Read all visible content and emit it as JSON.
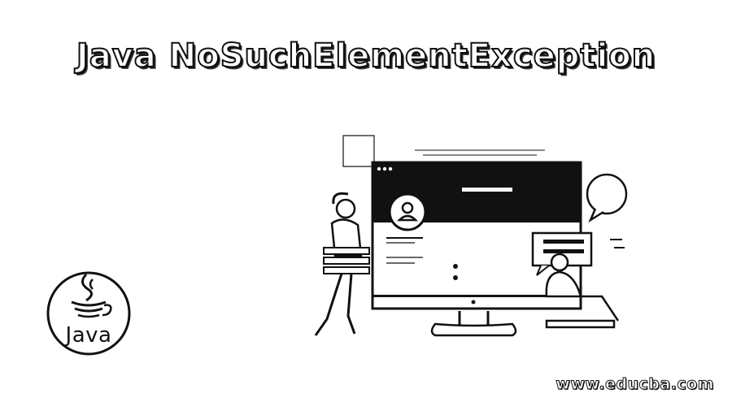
{
  "banner": {
    "title": "Java NoSuchElementException",
    "logo_text": "Java",
    "watermark": "www.educba.com"
  },
  "colors": {
    "ink": "#111111",
    "background": "#ffffff",
    "accent_gray": "#555555"
  },
  "icons": [
    "java-cup-icon",
    "user-avatar-icon",
    "speech-bubble-icon",
    "chat-message-icon"
  ]
}
